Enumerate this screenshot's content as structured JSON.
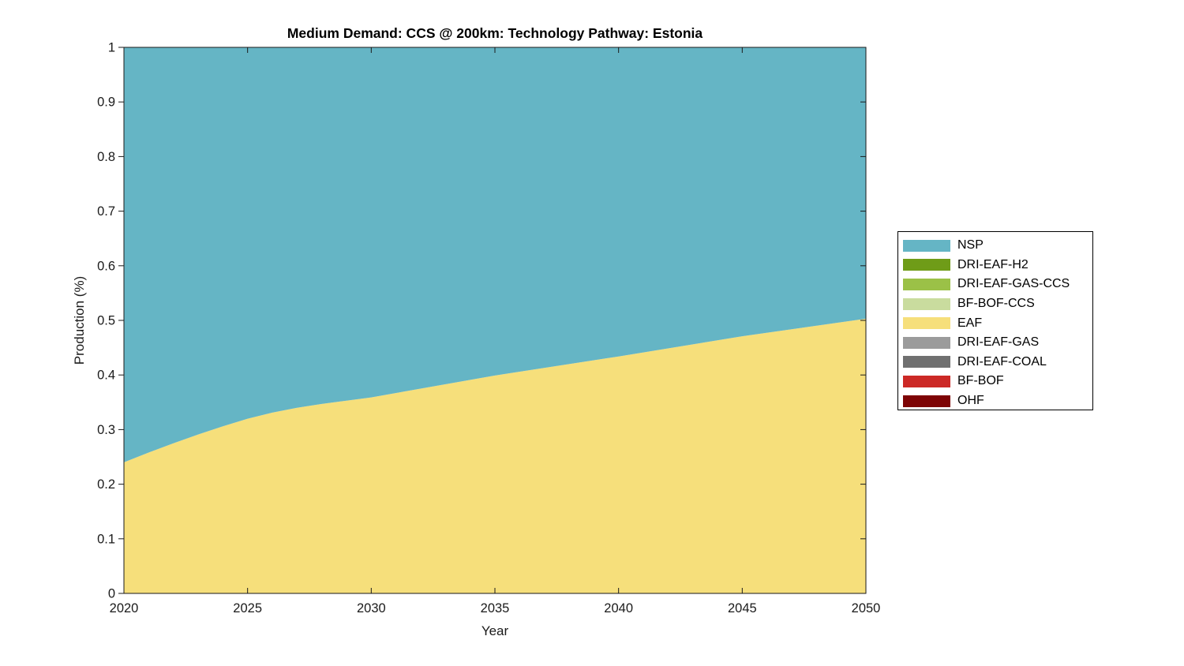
{
  "figure": {
    "title": "Medium Demand: CCS @ 200km: Technology Pathway: Estonia",
    "xlabel": "Year",
    "ylabel": "Production (%)",
    "background_color": "#ffffff",
    "frame_color": "#1a1a1a",
    "text_color": "#1a1a1a"
  },
  "chart_data": {
    "type": "area",
    "stacked": true,
    "title": "Medium Demand: CCS @ 200km: Technology Pathway: Estonia",
    "xlabel": "Year",
    "ylabel": "Production (%)",
    "xlim": [
      2020,
      2050
    ],
    "ylim": [
      0,
      1
    ],
    "xticks": [
      2020,
      2025,
      2030,
      2035,
      2040,
      2045,
      2050
    ],
    "yticks": [
      0,
      0.1,
      0.2,
      0.3,
      0.4,
      0.5,
      0.6,
      0.7,
      0.8,
      0.9,
      1
    ],
    "ytick_labels": [
      "0",
      "0.1",
      "0.2",
      "0.3",
      "0.4",
      "0.5",
      "0.6",
      "0.7",
      "0.8",
      "0.9",
      "1"
    ],
    "grid": false,
    "legend_position": "right-outside",
    "stack_note": "bottom-to-top stacking is the reverse of the series list; legend shows series list order",
    "x": [
      2020,
      2021,
      2022,
      2023,
      2024,
      2025,
      2026,
      2027,
      2028,
      2029,
      2030,
      2035,
      2040,
      2045,
      2050
    ],
    "series": [
      {
        "name": "NSP",
        "color": "#65B5C5",
        "values": [
          0.76,
          0.742,
          0.725,
          0.709,
          0.694,
          0.68,
          0.669,
          0.66,
          0.653,
          0.647,
          0.641,
          0.601,
          0.566,
          0.529,
          0.497
        ]
      },
      {
        "name": "DRI-EAF-H2",
        "color": "#6F9C18",
        "values": [
          0,
          0,
          0,
          0,
          0,
          0,
          0,
          0,
          0,
          0,
          0,
          0,
          0,
          0,
          0
        ]
      },
      {
        "name": "DRI-EAF-GAS-CCS",
        "color": "#9BC147",
        "values": [
          0,
          0,
          0,
          0,
          0,
          0,
          0,
          0,
          0,
          0,
          0,
          0,
          0,
          0,
          0
        ]
      },
      {
        "name": "BF-BOF-CCS",
        "color": "#C9DC9E",
        "values": [
          0,
          0,
          0,
          0,
          0,
          0,
          0,
          0,
          0,
          0,
          0,
          0,
          0,
          0,
          0
        ]
      },
      {
        "name": "EAF",
        "color": "#F6DF7B",
        "values": [
          0.24,
          0.258,
          0.275,
          0.291,
          0.306,
          0.32,
          0.331,
          0.34,
          0.347,
          0.353,
          0.359,
          0.399,
          0.434,
          0.471,
          0.503
        ]
      },
      {
        "name": "DRI-EAF-GAS",
        "color": "#9B9B9B",
        "values": [
          0,
          0,
          0,
          0,
          0,
          0,
          0,
          0,
          0,
          0,
          0,
          0,
          0,
          0,
          0
        ]
      },
      {
        "name": "DRI-EAF-COAL",
        "color": "#707070",
        "values": [
          0,
          0,
          0,
          0,
          0,
          0,
          0,
          0,
          0,
          0,
          0,
          0,
          0,
          0,
          0
        ]
      },
      {
        "name": "BF-BOF",
        "color": "#CC2926",
        "values": [
          0,
          0,
          0,
          0,
          0,
          0,
          0,
          0,
          0,
          0,
          0,
          0,
          0,
          0,
          0
        ]
      },
      {
        "name": "OHF",
        "color": "#7E0405",
        "values": [
          0,
          0,
          0,
          0,
          0,
          0,
          0,
          0,
          0,
          0,
          0,
          0,
          0,
          0,
          0
        ]
      }
    ]
  }
}
